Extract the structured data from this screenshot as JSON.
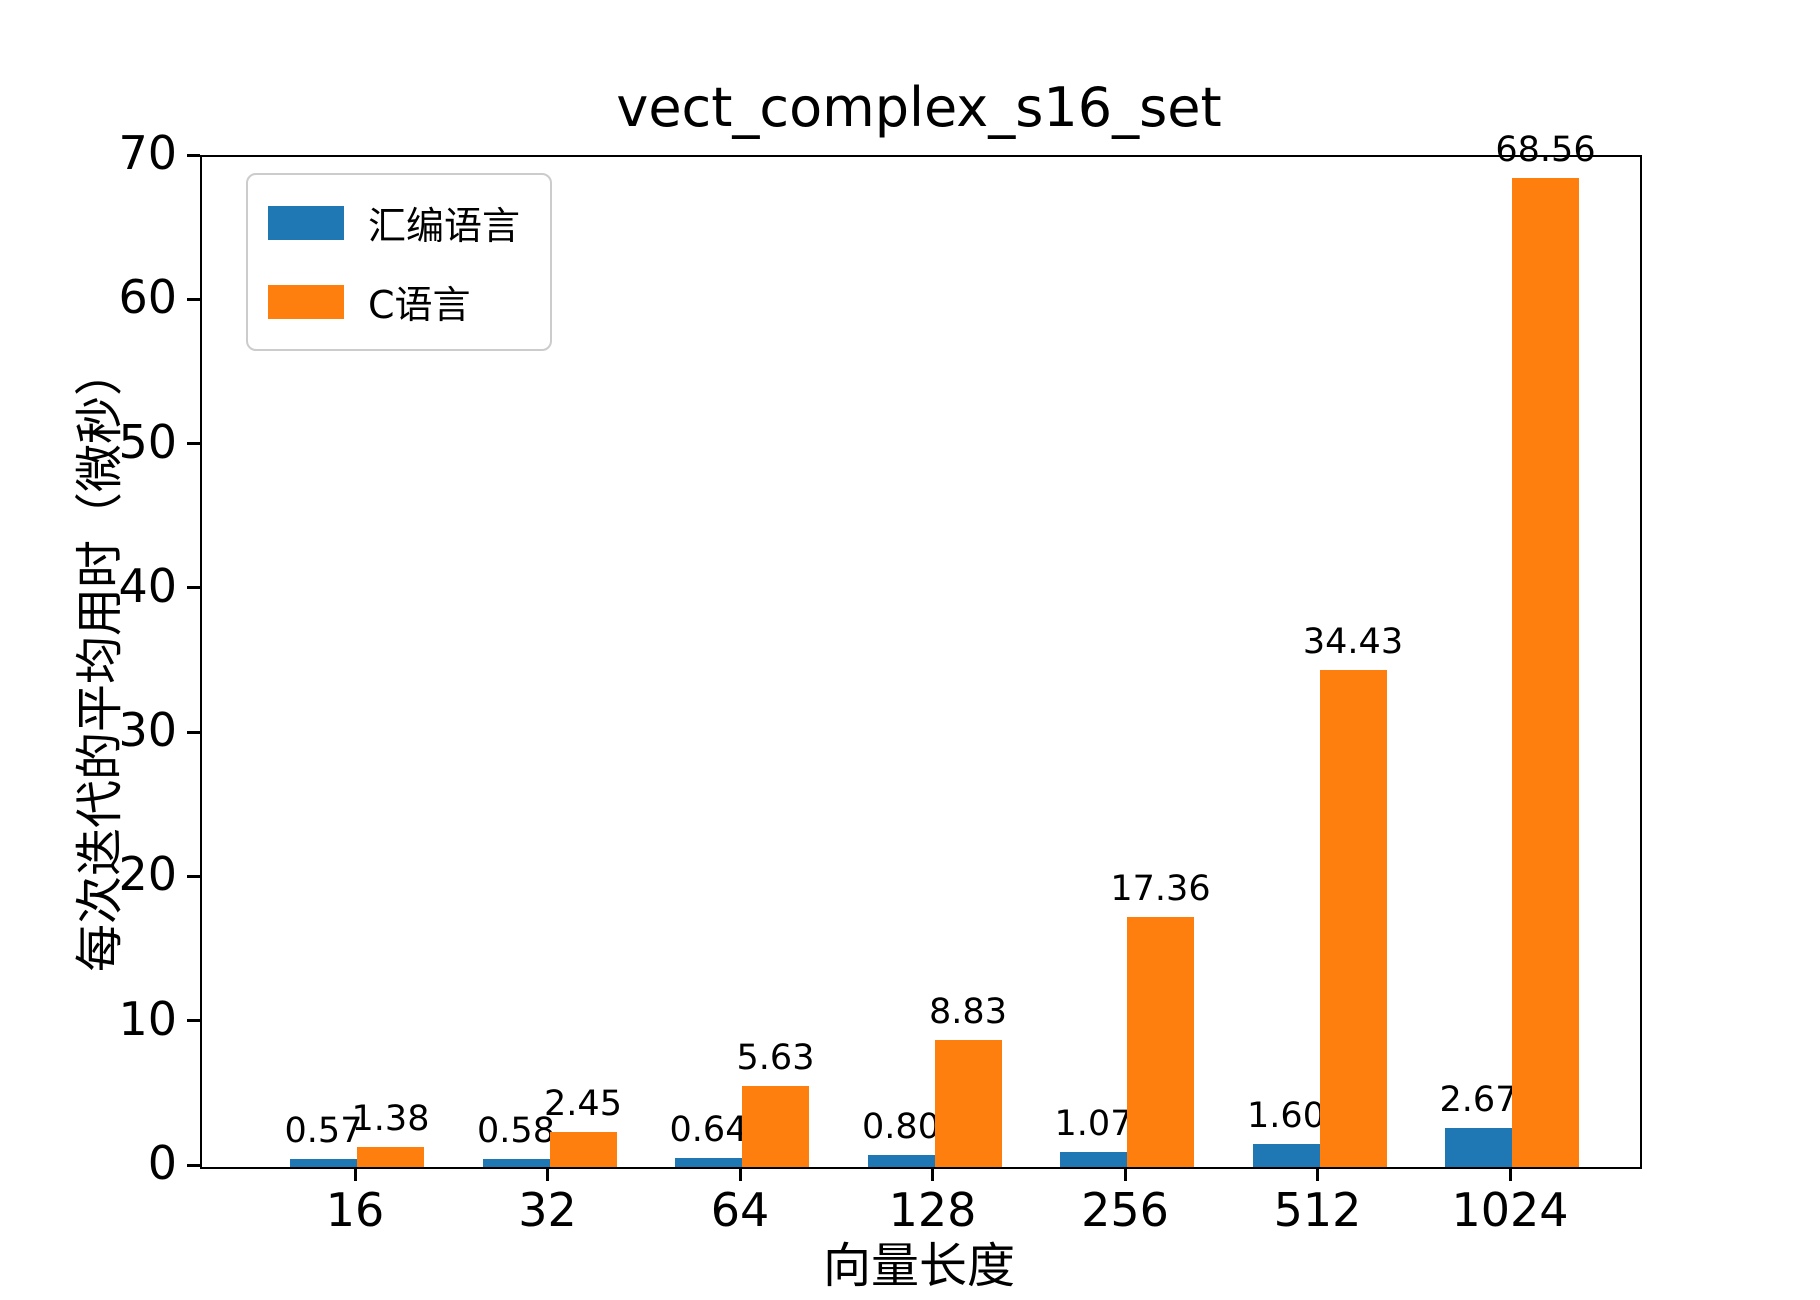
{
  "chart_data": {
    "type": "bar",
    "title": "vect_complex_s16_set",
    "xlabel": "向量长度",
    "ylabel": "每次迭代的平均用时（微秒）",
    "categories": [
      "16",
      "32",
      "64",
      "128",
      "256",
      "512",
      "1024"
    ],
    "series": [
      {
        "name": "汇编语言",
        "color": "#1f77b4",
        "values": [
          0.57,
          0.58,
          0.64,
          0.8,
          1.07,
          1.6,
          2.67
        ]
      },
      {
        "name": "C语言",
        "color": "#ff7f0e",
        "values": [
          1.38,
          2.45,
          5.63,
          8.83,
          17.36,
          34.43,
          68.56
        ]
      }
    ],
    "ylim": [
      0,
      70
    ],
    "yticks": [
      0,
      10,
      20,
      30,
      40,
      50,
      60,
      70
    ],
    "value_label_format": "0.00",
    "legend_position": "upper left",
    "grid": false
  }
}
